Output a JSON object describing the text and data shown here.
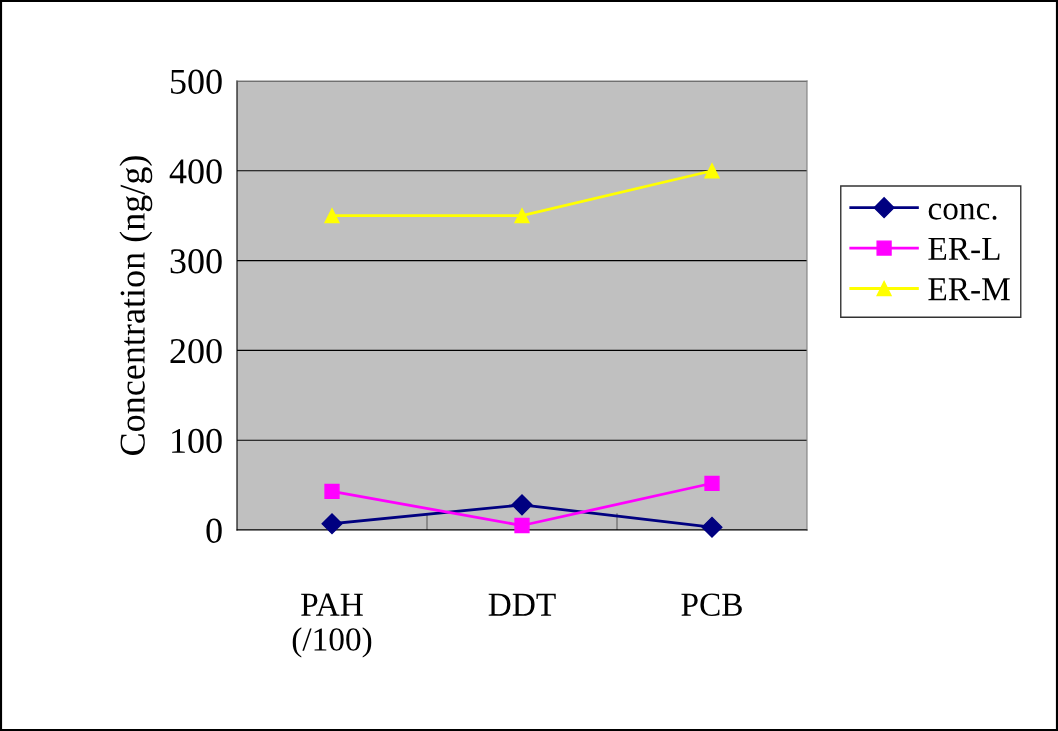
{
  "chart_data": {
    "type": "line",
    "ylabel": "Concentration (ng/g)",
    "categories": [
      "PAH\n(/100)",
      "DDT",
      "PCB"
    ],
    "series": [
      {
        "name": "conc.",
        "color": "#000080",
        "marker": "diamond",
        "values": [
          7,
          28,
          3
        ]
      },
      {
        "name": "ER-L",
        "color": "#ff00ff",
        "marker": "square",
        "values": [
          43,
          5,
          52
        ]
      },
      {
        "name": "ER-M",
        "color": "#ffff00",
        "marker": "triangle",
        "values": [
          350,
          350,
          400
        ]
      }
    ],
    "ylim": [
      0,
      500
    ],
    "yticks": [
      0,
      100,
      200,
      300,
      400,
      500
    ],
    "grid": "y",
    "legend": "right"
  }
}
